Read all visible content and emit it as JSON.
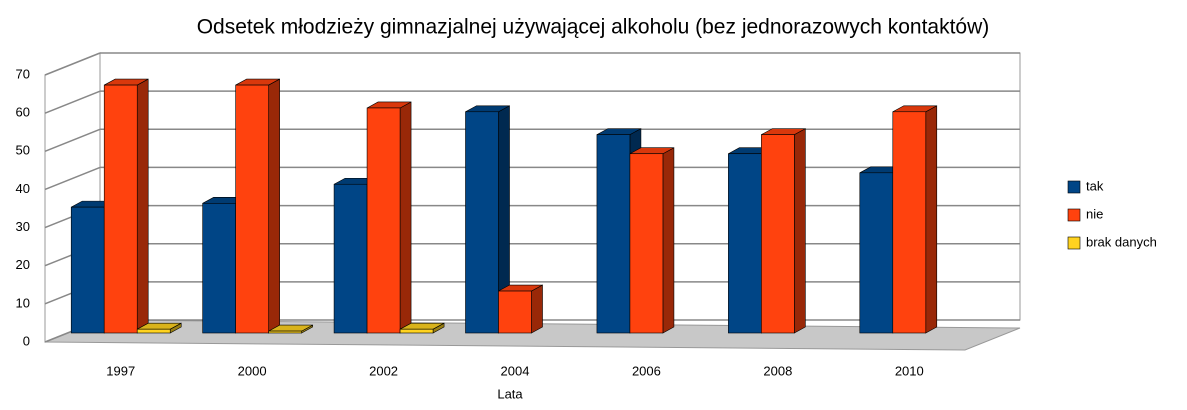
{
  "chart_data": {
    "type": "bar3d",
    "title": "Odsetek młodzieży gimnazjalnej używającej alkoholu (bez jednorazowych kontaktów)",
    "x_label": "Lata",
    "categories": [
      "1997",
      "2000",
      "2002",
      "2004",
      "2006",
      "2008",
      "2010"
    ],
    "series": [
      {
        "name": "tak",
        "color": "#004586",
        "values": [
          33,
          34,
          39,
          58,
          52,
          47,
          42
        ]
      },
      {
        "name": "nie",
        "color": "#ff420e",
        "values": [
          65,
          65,
          59,
          11,
          47,
          52,
          58
        ]
      },
      {
        "name": "brak danych",
        "color": "#ffd320",
        "values": [
          1,
          0.5,
          1,
          null,
          null,
          null,
          null
        ]
      }
    ],
    "ylim": [
      0,
      70
    ],
    "yticks": [
      0,
      10,
      20,
      30,
      40,
      50,
      60,
      70
    ],
    "grid": true,
    "legend": "right"
  }
}
